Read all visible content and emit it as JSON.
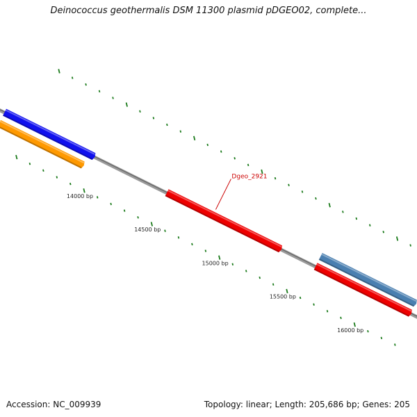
{
  "title": "Deinococcus geothermalis DSM 11300 plasmid pDGEO02, complete...",
  "accession": "Accession: NC_009939",
  "summary": "Topology: linear; Length: 205,686 bp; Genes: 205",
  "scale": {
    "tick_labels": [
      {
        "bp": 14000,
        "text": "14000 bp"
      },
      {
        "bp": 14500,
        "text": "14500 bp"
      },
      {
        "bp": 15000,
        "text": "15000 bp"
      },
      {
        "bp": 15500,
        "text": "15500 bp"
      },
      {
        "bp": 16000,
        "text": "16000 bp"
      }
    ],
    "minor_step_bp": 100,
    "range_bp": [
      13500,
      16300
    ]
  },
  "colors": {
    "backbone": "#808080",
    "ticks": "#1a7a1a",
    "label_text": "#cc0000",
    "gene_blue": "#1010ee",
    "gene_orange": "#ff9900",
    "gene_red": "#ee0000",
    "gene_steel": "#4a7fb0"
  },
  "genes": [
    {
      "id": "g-blue-1",
      "color": "gene_blue",
      "start_bp": 13300,
      "end_bp": 13960,
      "track": 1,
      "strand": "+"
    },
    {
      "id": "g-orange-1",
      "color": "gene_orange",
      "start_bp": 13300,
      "end_bp": 13920,
      "track": 2,
      "strand": "+"
    },
    {
      "id": "g-red-1",
      "color": "gene_red",
      "start_bp": 14500,
      "end_bp": 15340,
      "track": 1,
      "strand": "+",
      "label": "Dgeo_2921"
    },
    {
      "id": "g-steel-1",
      "color": "gene_steel",
      "start_bp": 15600,
      "end_bp": 16300,
      "track": 0,
      "strand": "+"
    },
    {
      "id": "g-red-2",
      "color": "gene_red",
      "start_bp": 15600,
      "end_bp": 16300,
      "track": 1,
      "strand": "+"
    }
  ]
}
